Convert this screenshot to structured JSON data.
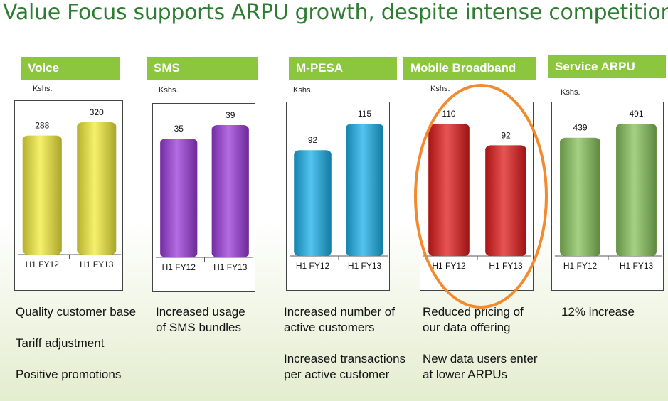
{
  "title": "Value Focus supports ARPU growth, despite intense competition",
  "chart_data": [
    {
      "type": "bar",
      "title": "Voice",
      "unit": "Kshs.",
      "categories": [
        "H1 FY12",
        "H1 FY13"
      ],
      "values": [
        288,
        320
      ],
      "color": "#f2ec3a",
      "notes": [
        "Quality customer base",
        "Tariff adjustment",
        "Positive promotions"
      ]
    },
    {
      "type": "bar",
      "title": "SMS",
      "unit": "Kshs.",
      "categories": [
        "H1 FY12",
        "H1 FY13"
      ],
      "values": [
        35,
        39
      ],
      "color": "#9b3bd9",
      "notes": [
        "Increased usage of SMS bundles"
      ]
    },
    {
      "type": "bar",
      "title": "M-PESA",
      "unit": "Kshs.",
      "categories": [
        "H1 FY12",
        "H1 FY13"
      ],
      "values": [
        92,
        115
      ],
      "color": "#1ab0e8",
      "notes": [
        "Increased number of active customers",
        "Increased transactions per active customer"
      ]
    },
    {
      "type": "bar",
      "title": "Mobile Broadband",
      "unit": "Kshs.",
      "categories": [
        "H1 FY12",
        "H1 FY13"
      ],
      "values": [
        110,
        92
      ],
      "color": "#e01b1b",
      "notes": [
        "Reduced pricing of our data offering",
        "New data users enter at lower ARPUs"
      ],
      "highlighted": true
    },
    {
      "type": "bar",
      "title": "Service ARPU",
      "unit": "Kshs.",
      "categories": [
        "H1 FY12",
        "H1 FY13"
      ],
      "values": [
        439,
        491
      ],
      "color": "#86c25a",
      "notes": [
        "12% increase"
      ]
    }
  ]
}
